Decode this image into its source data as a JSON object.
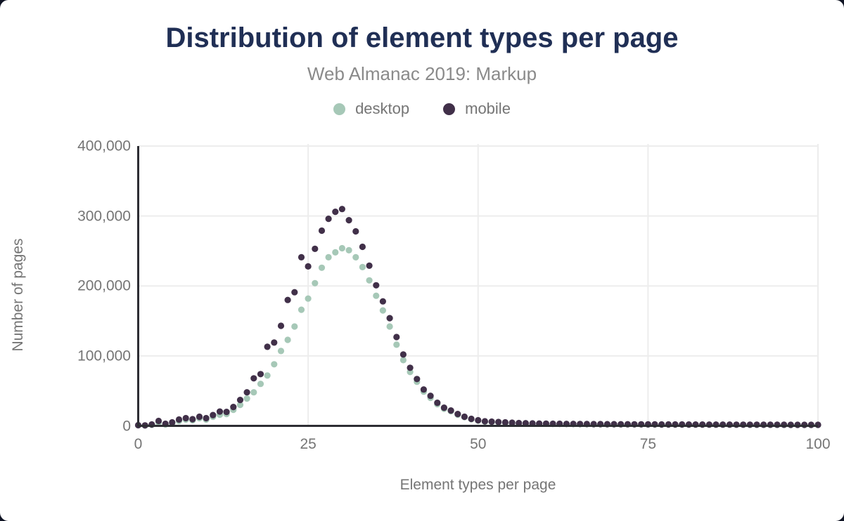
{
  "title": "Distribution of element types per page",
  "subtitle": "Web Almanac 2019: Markup",
  "legend": [
    {
      "label": "desktop",
      "color": "#a6c8b7"
    },
    {
      "label": "mobile",
      "color": "#413049"
    }
  ],
  "colors": {
    "title": "#202f55",
    "muted_text": "#757575",
    "axis": "#2d2d33",
    "gridline": "#ededed",
    "background": "#ffffff",
    "desktop": "#a6c8b7",
    "mobile": "#413049"
  },
  "axes": {
    "x": {
      "label": "Element types per page",
      "tick_labels": [
        "0",
        "25",
        "50",
        "75",
        "100"
      ],
      "tick_values": [
        0,
        25,
        50,
        75,
        100
      ]
    },
    "y": {
      "label": "Number of pages",
      "tick_labels": [
        "0",
        "100,000",
        "200,000",
        "300,000",
        "400,000"
      ],
      "tick_values": [
        0,
        100000,
        200000,
        300000,
        400000
      ]
    }
  },
  "chart_data": {
    "type": "scatter",
    "title": "Distribution of element types per page",
    "subtitle": "Web Almanac 2019: Markup",
    "xlabel": "Element types per page",
    "ylabel": "Number of pages",
    "xlim": [
      0,
      100
    ],
    "ylim": [
      0,
      400000
    ],
    "grid": true,
    "legend_position": "top",
    "x": [
      0,
      1,
      2,
      3,
      4,
      5,
      6,
      7,
      8,
      9,
      10,
      11,
      12,
      13,
      14,
      15,
      16,
      17,
      18,
      19,
      20,
      21,
      22,
      23,
      24,
      25,
      26,
      27,
      28,
      29,
      30,
      31,
      32,
      33,
      34,
      35,
      36,
      37,
      38,
      39,
      40,
      41,
      42,
      43,
      44,
      45,
      46,
      47,
      48,
      49,
      50,
      51,
      52,
      53,
      54,
      55,
      56,
      57,
      58,
      59,
      60,
      61,
      62,
      63,
      64,
      65,
      66,
      67,
      68,
      69,
      70,
      71,
      72,
      73,
      74,
      75,
      76,
      77,
      78,
      79,
      80,
      81,
      82,
      83,
      84,
      85,
      86,
      87,
      88,
      89,
      90,
      91,
      92,
      93,
      94,
      95,
      96,
      97,
      98,
      99,
      100
    ],
    "series": [
      {
        "name": "desktop",
        "color": "#a6c8b7",
        "values": [
          800,
          500,
          1500,
          5000,
          2000,
          3500,
          7000,
          9000,
          8000,
          11000,
          9000,
          13000,
          16000,
          17000,
          23000,
          30000,
          39000,
          48000,
          60000,
          72000,
          88000,
          107000,
          123000,
          142000,
          166000,
          182000,
          204000,
          226000,
          241000,
          248000,
          254000,
          251000,
          241000,
          227000,
          208000,
          186000,
          165000,
          142000,
          116000,
          94000,
          77000,
          63000,
          49000,
          40000,
          31000,
          24500,
          21000,
          16000,
          12500,
          9500,
          7500,
          6000,
          5500,
          5000,
          4500,
          4200,
          3800,
          3500,
          3300,
          3100,
          3000,
          2900,
          2800,
          2700,
          2600,
          2500,
          2500,
          2400,
          2400,
          2300,
          2300,
          2200,
          2200,
          2100,
          2100,
          2000,
          2000,
          1900,
          1900,
          1900,
          1800,
          1800,
          1800,
          1700,
          1700,
          1700,
          1600,
          1600,
          1600,
          1600,
          1500,
          1500,
          1500,
          1500,
          1400,
          1400,
          1400,
          1400,
          1400,
          1300,
          1300
        ]
      },
      {
        "name": "mobile",
        "color": "#413049",
        "values": [
          1000,
          700,
          2000,
          7000,
          3000,
          5000,
          9000,
          11000,
          9500,
          13000,
          11000,
          15500,
          20500,
          20000,
          27000,
          37000,
          48000,
          68000,
          74000,
          113000,
          119000,
          143000,
          180000,
          191000,
          241000,
          228000,
          253000,
          279000,
          296000,
          306000,
          310000,
          294000,
          278000,
          256000,
          229000,
          201000,
          178000,
          154000,
          127000,
          102000,
          83000,
          67000,
          52000,
          43000,
          33000,
          26000,
          22000,
          17000,
          13000,
          10000,
          8000,
          6500,
          6000,
          5500,
          5000,
          4500,
          4000,
          3800,
          3500,
          3300,
          3200,
          3000,
          3000,
          2800,
          2800,
          2700,
          2600,
          2500,
          2500,
          2400,
          2400,
          2300,
          2300,
          2200,
          2200,
          2100,
          2100,
          2000,
          2000,
          2000,
          2000,
          1900,
          1900,
          1900,
          1800,
          1800,
          1800,
          1800,
          1700,
          1700,
          1700,
          1700,
          1600,
          1600,
          1600,
          1600,
          1500,
          1500,
          1500,
          1500,
          1500
        ]
      }
    ]
  }
}
